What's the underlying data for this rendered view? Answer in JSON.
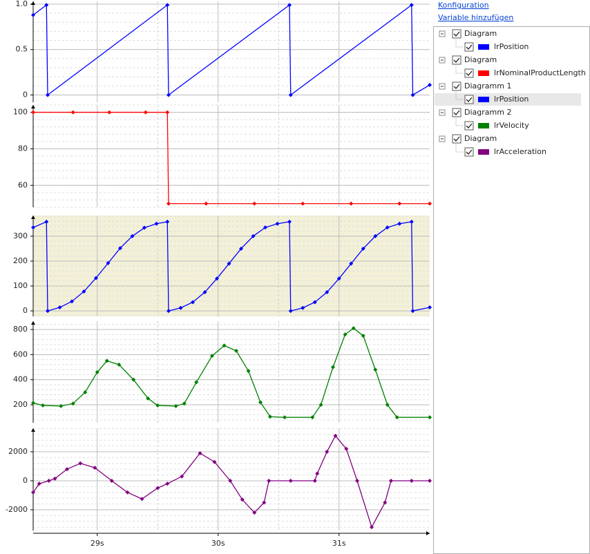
{
  "chart_data": [
    {
      "type": "line",
      "title": "Diagram",
      "xlim": [
        28.47,
        31.75
      ],
      "ylim": [
        -0.08,
        1.03
      ],
      "yticks": [
        0,
        0.5,
        {
          "value": 1,
          "label": "1.0"
        }
      ],
      "grid": true,
      "x": [
        28.47,
        28.58,
        28.59,
        29.58,
        29.59,
        30.59,
        30.6,
        31.6,
        31.61,
        31.75
      ],
      "series": [
        {
          "name": "lrPosition",
          "color": "#0000ff",
          "values": [
            0.88,
            0.99,
            0,
            0.99,
            0,
            0.99,
            0,
            0.99,
            0,
            0.11
          ]
        }
      ]
    },
    {
      "type": "line",
      "title": "Diagram",
      "xlim": [
        28.47,
        31.75
      ],
      "ylim": [
        48,
        104
      ],
      "yticks": [
        60,
        80,
        100
      ],
      "grid": true,
      "x": [
        28.47,
        28.8,
        29.1,
        29.4,
        29.58,
        29.59,
        29.9,
        30.3,
        30.7,
        31.1,
        31.5,
        31.75
      ],
      "series": [
        {
          "name": "lrNominalProductLength",
          "color": "#ff0000",
          "values": [
            100,
            100,
            100,
            100,
            100,
            50,
            50,
            50,
            50,
            50,
            50,
            50
          ]
        }
      ]
    },
    {
      "type": "line",
      "title": "Diagramm 1",
      "xlim": [
        28.47,
        31.75
      ],
      "ylim": [
        -22,
        383
      ],
      "yticks": [
        0,
        100,
        200,
        300
      ],
      "grid": true,
      "background": "#f3f0d8",
      "x": [
        28.47,
        28.58,
        28.59,
        28.69,
        28.79,
        28.89,
        28.99,
        29.09,
        29.19,
        29.29,
        29.39,
        29.49,
        29.58,
        29.59,
        29.69,
        29.79,
        29.89,
        29.99,
        30.09,
        30.19,
        30.29,
        30.39,
        30.49,
        30.59,
        30.6,
        30.7,
        30.8,
        30.9,
        31.0,
        31.1,
        31.2,
        31.3,
        31.4,
        31.5,
        31.6,
        31.61,
        31.75
      ],
      "series": [
        {
          "name": "lrPosition",
          "color": "#0000ff",
          "values": [
            335,
            358,
            0,
            14,
            38,
            78,
            132,
            192,
            252,
            300,
            334,
            350,
            358,
            0,
            12,
            35,
            75,
            130,
            190,
            250,
            300,
            335,
            350,
            358,
            0,
            12,
            35,
            75,
            130,
            190,
            250,
            300,
            335,
            350,
            358,
            0,
            14
          ]
        }
      ]
    },
    {
      "type": "line",
      "title": "Diagramm 2",
      "xlim": [
        28.47,
        31.75
      ],
      "ylim": [
        57,
        866
      ],
      "yticks": [
        200,
        400,
        600,
        800
      ],
      "grid": true,
      "x": [
        28.47,
        28.55,
        28.7,
        28.8,
        28.9,
        29.0,
        29.08,
        29.18,
        29.3,
        29.42,
        29.5,
        29.65,
        29.72,
        29.82,
        29.95,
        30.05,
        30.15,
        30.25,
        30.35,
        30.43,
        30.55,
        30.78,
        30.85,
        30.95,
        31.05,
        31.12,
        31.2,
        31.3,
        31.4,
        31.48,
        31.75
      ],
      "series": [
        {
          "name": "lrVelocity",
          "color": "#008000",
          "values": [
            215,
            195,
            190,
            210,
            300,
            460,
            550,
            520,
            400,
            250,
            195,
            190,
            210,
            380,
            590,
            672,
            630,
            470,
            220,
            105,
            100,
            100,
            200,
            500,
            760,
            810,
            750,
            480,
            200,
            100,
            100
          ]
        }
      ]
    },
    {
      "type": "line",
      "title": "Diagram",
      "xlim": [
        28.47,
        31.75
      ],
      "ylim": [
        -3430,
        3620
      ],
      "yticks": [
        -2000,
        0,
        2000
      ],
      "grid": true,
      "xticks": [
        {
          "value": 29,
          "label": "29s"
        },
        {
          "value": 30,
          "label": "30s"
        },
        {
          "value": 31,
          "label": "31s"
        }
      ],
      "x": [
        28.47,
        28.52,
        28.6,
        28.65,
        28.75,
        28.86,
        28.98,
        29.12,
        29.25,
        29.37,
        29.5,
        29.58,
        29.7,
        29.85,
        29.97,
        30.1,
        30.2,
        30.3,
        30.38,
        30.42,
        30.6,
        30.8,
        30.82,
        30.9,
        30.97,
        31.06,
        31.15,
        31.27,
        31.38,
        31.43,
        31.6,
        31.75
      ],
      "series": [
        {
          "name": "lrAcceleration",
          "color": "#800080",
          "values": [
            -800,
            -200,
            0,
            150,
            800,
            1200,
            900,
            0,
            -800,
            -1250,
            -500,
            -200,
            300,
            1900,
            1300,
            0,
            -1300,
            -2200,
            -1500,
            0,
            0,
            0,
            500,
            2000,
            3100,
            2200,
            0,
            -3200,
            -1500,
            0,
            0,
            0
          ]
        }
      ]
    }
  ],
  "panel": {
    "links": [
      "Konfiguration",
      "Variable hinzufügen"
    ]
  }
}
